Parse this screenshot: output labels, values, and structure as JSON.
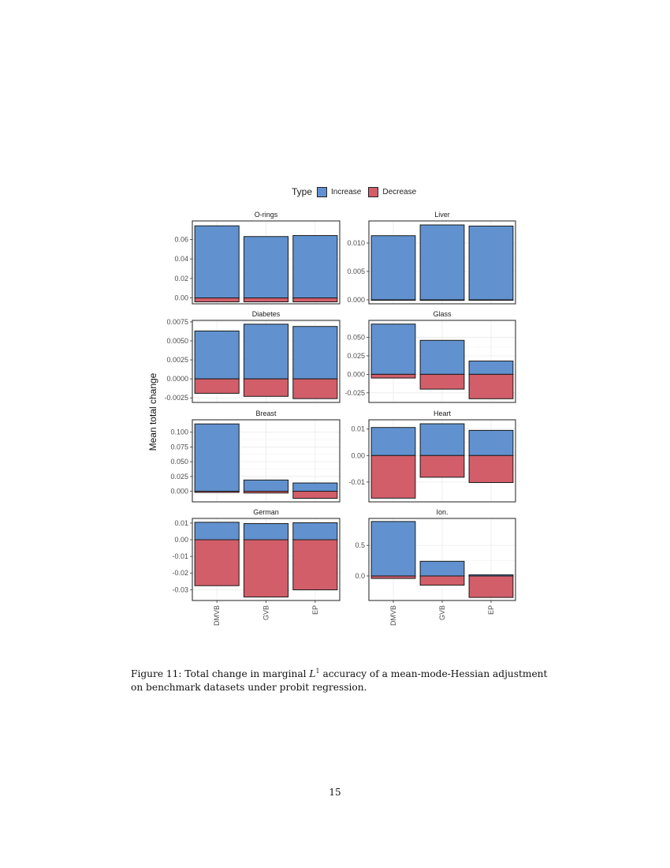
{
  "legend": {
    "title": "Type",
    "items": [
      {
        "label": "Increase",
        "color": "#6192CF"
      },
      {
        "label": "Decrease",
        "color": "#D25E6A"
      }
    ]
  },
  "y_axis_label": "Mean total change",
  "x_categories": [
    "DMVB",
    "GVB",
    "EP"
  ],
  "caption": {
    "prefix": "Figure 11: Total change in marginal ",
    "math": "L",
    "sup": "1",
    "suffix": " accuracy of a mean-mode-Hessian adjustment on benchmark datasets under probit regression."
  },
  "page_number": "15",
  "chart_data": {
    "type": "bar",
    "subtype": "faceted diverging stacked bar (increase above zero, decrease below zero)",
    "title": "",
    "xlabel": "",
    "ylabel": "Mean total change",
    "legend": {
      "title": "Type",
      "entries": [
        "Increase",
        "Decrease"
      ],
      "position": "top"
    },
    "grid": true,
    "categories": [
      "DMVB",
      "GVB",
      "EP"
    ],
    "facets": [
      {
        "name": "O-rings",
        "ylim": [
          -0.006,
          0.079
        ],
        "yticks": [
          0.0,
          0.02,
          0.04,
          0.06
        ],
        "ytick_labels": [
          "0.00",
          "0.02",
          "0.04",
          "0.06"
        ],
        "series": [
          {
            "name": "Increase",
            "values": [
              0.074,
              0.063,
              0.064
            ]
          },
          {
            "name": "Decrease",
            "values": [
              -0.004,
              -0.004,
              -0.004
            ]
          }
        ]
      },
      {
        "name": "Liver",
        "ylim": [
          -0.0007,
          0.0139
        ],
        "yticks": [
          0.0,
          0.005,
          0.01
        ],
        "ytick_labels": [
          "0.000",
          "0.005",
          "0.010"
        ],
        "series": [
          {
            "name": "Increase",
            "values": [
              0.0113,
              0.0132,
              0.013
            ]
          },
          {
            "name": "Decrease",
            "values": [
              0.0,
              -0.0001,
              0.0
            ]
          }
        ]
      },
      {
        "name": "Diabetes",
        "ylim": [
          -0.0031,
          0.0077
        ],
        "yticks": [
          -0.0025,
          0.0,
          0.0025,
          0.005,
          0.0075
        ],
        "ytick_labels": [
          "-0.0025",
          "0.0000",
          "0.0025",
          "0.0050",
          "0.0075"
        ],
        "series": [
          {
            "name": "Increase",
            "values": [
              0.0063,
              0.0072,
              0.0069
            ]
          },
          {
            "name": "Decrease",
            "values": [
              -0.0019,
              -0.0023,
              -0.0026
            ]
          }
        ]
      },
      {
        "name": "Glass",
        "ylim": [
          -0.038,
          0.073
        ],
        "yticks": [
          -0.025,
          0.0,
          0.025,
          0.05
        ],
        "ytick_labels": [
          "-0.025",
          "0.000",
          "0.025",
          "0.050"
        ],
        "series": [
          {
            "name": "Increase",
            "values": [
              0.068,
              0.046,
              0.018
            ]
          },
          {
            "name": "Decrease",
            "values": [
              -0.005,
              -0.02,
              -0.033
            ]
          }
        ]
      },
      {
        "name": "Breast",
        "ylim": [
          -0.018,
          0.121
        ],
        "yticks": [
          0.0,
          0.025,
          0.05,
          0.075,
          0.1
        ],
        "ytick_labels": [
          "0.000",
          "0.025",
          "0.050",
          "0.075",
          "0.100"
        ],
        "series": [
          {
            "name": "Increase",
            "values": [
              0.114,
              0.019,
              0.014
            ]
          },
          {
            "name": "Decrease",
            "values": [
              -0.002,
              -0.003,
              -0.012
            ]
          }
        ]
      },
      {
        "name": "Heart",
        "ylim": [
          -0.0175,
          0.0135
        ],
        "yticks": [
          -0.01,
          0.0,
          0.01
        ],
        "ytick_labels": [
          "-0.01",
          "0.00",
          "0.01"
        ],
        "series": [
          {
            "name": "Increase",
            "values": [
              0.0106,
              0.012,
              0.0095
            ]
          },
          {
            "name": "Decrease",
            "values": [
              -0.0161,
              -0.0082,
              -0.0102
            ]
          }
        ]
      },
      {
        "name": "German",
        "ylim": [
          -0.0365,
          0.0128
        ],
        "yticks": [
          -0.03,
          -0.02,
          -0.01,
          0.0,
          0.01
        ],
        "ytick_labels": [
          "-0.03",
          "-0.02",
          "-0.01",
          "0.00",
          "0.01"
        ],
        "series": [
          {
            "name": "Increase",
            "values": [
              0.0105,
              0.0097,
              0.0102
            ]
          },
          {
            "name": "Decrease",
            "values": [
              -0.0276,
              -0.0344,
              -0.0301
            ]
          }
        ]
      },
      {
        "name": "Ion.",
        "ylim": [
          -0.4,
          0.94
        ],
        "yticks": [
          0.0,
          0.5
        ],
        "ytick_labels": [
          "0.0",
          "0.5"
        ],
        "series": [
          {
            "name": "Increase",
            "values": [
              0.89,
              0.24,
              0.02
            ]
          },
          {
            "name": "Decrease",
            "values": [
              -0.04,
              -0.15,
              -0.35
            ]
          }
        ]
      }
    ]
  }
}
